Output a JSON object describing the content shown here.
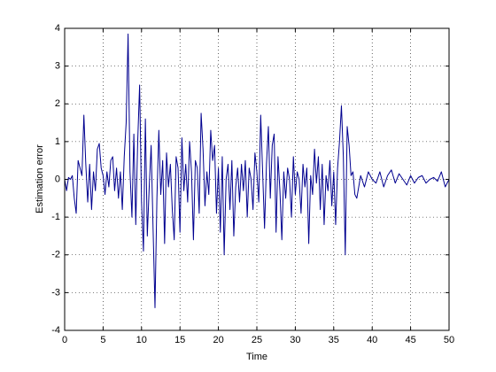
{
  "chart_data": {
    "type": "line",
    "xlabel": "Time",
    "ylabel": "Estimation error",
    "color": "#00008f",
    "grid": true,
    "xlim": [
      0,
      50
    ],
    "xticks": [
      0,
      5,
      10,
      15,
      20,
      25,
      30,
      35,
      40,
      45,
      50
    ],
    "ylim": [
      -4,
      4
    ],
    "yticks": [
      -4,
      -3,
      -2,
      -1,
      0,
      1,
      2,
      3,
      4
    ],
    "x": [
      0,
      0.25,
      0.5,
      0.75,
      1,
      1.25,
      1.5,
      1.75,
      2,
      2.25,
      2.5,
      2.75,
      3,
      3.25,
      3.5,
      3.75,
      4,
      4.25,
      4.5,
      4.75,
      5,
      5.25,
      5.5,
      5.75,
      6,
      6.25,
      6.5,
      6.75,
      7,
      7.25,
      7.5,
      7.75,
      8,
      8.25,
      8.5,
      8.75,
      9,
      9.25,
      9.5,
      9.75,
      10,
      10.25,
      10.5,
      10.75,
      11,
      11.25,
      11.5,
      11.75,
      12,
      12.25,
      12.5,
      12.75,
      13,
      13.25,
      13.5,
      13.75,
      14,
      14.25,
      14.5,
      14.75,
      15,
      15.25,
      15.5,
      15.75,
      16,
      16.25,
      16.5,
      16.75,
      17,
      17.25,
      17.5,
      17.75,
      18,
      18.25,
      18.5,
      18.75,
      19,
      19.25,
      19.5,
      19.75,
      20,
      20.25,
      20.5,
      20.75,
      21,
      21.25,
      21.5,
      21.75,
      22,
      22.25,
      22.5,
      22.75,
      23,
      23.25,
      23.5,
      23.75,
      24,
      24.25,
      24.5,
      24.75,
      25,
      25.25,
      25.5,
      25.75,
      26,
      26.25,
      26.5,
      26.75,
      27,
      27.25,
      27.5,
      27.75,
      28,
      28.25,
      28.5,
      28.75,
      29,
      29.25,
      29.5,
      29.75,
      30,
      30.25,
      30.5,
      30.75,
      31,
      31.25,
      31.5,
      31.75,
      32,
      32.25,
      32.5,
      32.75,
      33,
      33.25,
      33.5,
      33.75,
      34,
      34.25,
      34.5,
      34.75,
      35,
      35.25,
      35.5,
      35.75,
      36,
      36.25,
      36.5,
      36.75,
      37,
      37.25,
      37.5,
      37.75,
      38,
      38.5,
      39,
      39.5,
      40,
      40.5,
      41,
      41.5,
      42,
      42.5,
      43,
      43.5,
      44,
      44.5,
      45,
      45.5,
      46,
      46.5,
      47,
      47.5,
      48,
      48.5,
      49,
      49.5,
      50
    ],
    "values": [
      0,
      -0.3,
      0.05,
      0,
      0.1,
      -0.5,
      -0.9,
      0.5,
      0.3,
      0.1,
      1.7,
      0.4,
      -0.6,
      0.4,
      -0.8,
      0.2,
      -0.3,
      0.8,
      0.95,
      0.3,
      0.1,
      -0.4,
      0.2,
      -0.2,
      0.5,
      0.6,
      -0.3,
      0.3,
      -0.5,
      0.2,
      -0.8,
      0.6,
      1.5,
      3.85,
      0.2,
      -1.0,
      1.2,
      -1.2,
      1.0,
      2.5,
      -0.6,
      -1.9,
      1.6,
      -1.5,
      -0.2,
      0.9,
      -1.3,
      -3.4,
      -0.5,
      1.3,
      -0.4,
      0.5,
      -1.7,
      0.7,
      -0.2,
      0.4,
      -0.8,
      -1.6,
      0.6,
      0.3,
      -1.4,
      1.1,
      -0.3,
      0.4,
      -0.6,
      1.0,
      0.2,
      -1.6,
      0.5,
      0.3,
      -0.9,
      1.75,
      0.8,
      -0.7,
      0.2,
      -0.4,
      1.3,
      0.5,
      0.9,
      -0.9,
      0.3,
      -1.4,
      0.6,
      -2.0,
      0.0,
      0.4,
      -0.8,
      0.5,
      -1.5,
      -0.2,
      0.3,
      -0.6,
      0.4,
      -0.3,
      0.5,
      -1.0,
      0.3,
      0.0,
      -0.8,
      0.7,
      0.2,
      -0.6,
      1.7,
      0.2,
      -1.3,
      0.4,
      1.4,
      -0.5,
      0.9,
      1.2,
      -1.4,
      0.6,
      -0.3,
      -1.6,
      0.2,
      -0.5,
      0.3,
      0.0,
      -1.0,
      0.6,
      -0.4,
      0.2,
      0.0,
      -0.9,
      0.4,
      -0.2,
      0.3,
      -1.7,
      0.1,
      -0.4,
      0.8,
      -0.1,
      0.6,
      -0.8,
      0.4,
      -1.2,
      0.1,
      -0.3,
      0.5,
      -0.7,
      0.2,
      -1.2,
      0.3,
      1.0,
      1.95,
      0.6,
      -2.0,
      1.4,
      0.9,
      0.1,
      0.2,
      -0.4,
      -0.5,
      0.1,
      -0.2,
      0.2,
      0.0,
      -0.1,
      0.2,
      -0.2,
      0.1,
      0.25,
      -0.1,
      0.15,
      0.0,
      -0.15,
      0.1,
      -0.1,
      0.05,
      0.1,
      -0.1,
      0.0,
      0.05,
      -0.05,
      0.2,
      -0.2,
      0.0
    ]
  }
}
